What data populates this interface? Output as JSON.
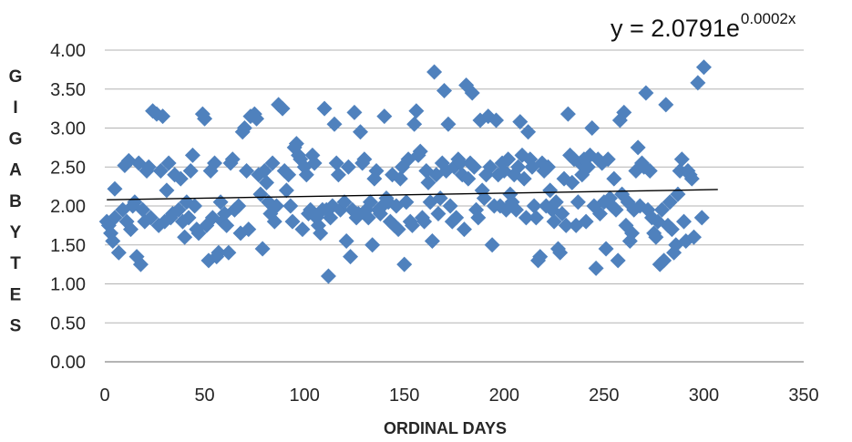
{
  "chart_data": {
    "type": "scatter",
    "xlabel": "ORDINAL DAYS",
    "ylabel": "GIGABYTES",
    "xlim": [
      0,
      350
    ],
    "ylim": [
      0.0,
      4.0
    ],
    "x_ticks": [
      "0",
      "50",
      "100",
      "150",
      "200",
      "250",
      "300",
      "350"
    ],
    "y_ticks": [
      "0.00",
      "0.50",
      "1.00",
      "1.50",
      "2.00",
      "2.50",
      "3.00",
      "3.50",
      "4.00"
    ],
    "grid": "horizontal",
    "legend": "none",
    "marker": "diamond",
    "marker_color": "#4F81BD",
    "trendline": {
      "type": "exponential",
      "a": 2.0791,
      "b": 0.0002,
      "x_range": [
        1,
        307
      ],
      "color": "#000000",
      "label_base": "y = 2.0791e",
      "label_exp": "0.0002x"
    },
    "points": [
      [
        1,
        1.8
      ],
      [
        2,
        1.75
      ],
      [
        3,
        1.65
      ],
      [
        4,
        1.55
      ],
      [
        5,
        1.85
      ],
      [
        5,
        2.22
      ],
      [
        7,
        1.4
      ],
      [
        9,
        1.95
      ],
      [
        10,
        2.52
      ],
      [
        11,
        1.8
      ],
      [
        12,
        2.58
      ],
      [
        13,
        1.7
      ],
      [
        14,
        2.0
      ],
      [
        15,
        2.05
      ],
      [
        16,
        1.35
      ],
      [
        17,
        2.55
      ],
      [
        18,
        1.25
      ],
      [
        19,
        1.95
      ],
      [
        20,
        1.8
      ],
      [
        21,
        2.45
      ],
      [
        22,
        2.5
      ],
      [
        23,
        1.85
      ],
      [
        24,
        3.22
      ],
      [
        26,
        3.18
      ],
      [
        27,
        1.75
      ],
      [
        28,
        2.45
      ],
      [
        29,
        3.15
      ],
      [
        30,
        1.8
      ],
      [
        31,
        2.2
      ],
      [
        32,
        2.55
      ],
      [
        33,
        1.85
      ],
      [
        34,
        1.9
      ],
      [
        35,
        2.4
      ],
      [
        37,
        1.95
      ],
      [
        38,
        2.35
      ],
      [
        39,
        1.8
      ],
      [
        40,
        1.6
      ],
      [
        41,
        2.05
      ],
      [
        42,
        1.85
      ],
      [
        43,
        2.45
      ],
      [
        44,
        2.65
      ],
      [
        45,
        2.0
      ],
      [
        46,
        1.7
      ],
      [
        47,
        1.65
      ],
      [
        49,
        3.18
      ],
      [
        50,
        3.12
      ],
      [
        51,
        1.75
      ],
      [
        52,
        1.3
      ],
      [
        53,
        2.45
      ],
      [
        54,
        1.85
      ],
      [
        55,
        2.55
      ],
      [
        56,
        1.35
      ],
      [
        57,
        1.4
      ],
      [
        58,
        2.05
      ],
      [
        59,
        1.8
      ],
      [
        60,
        1.9
      ],
      [
        61,
        1.75
      ],
      [
        62,
        1.4
      ],
      [
        63,
        2.55
      ],
      [
        64,
        2.6
      ],
      [
        65,
        1.95
      ],
      [
        67,
        2.0
      ],
      [
        68,
        1.65
      ],
      [
        69,
        2.95
      ],
      [
        70,
        3.0
      ],
      [
        71,
        2.45
      ],
      [
        72,
        1.7
      ],
      [
        73,
        3.15
      ],
      [
        75,
        3.18
      ],
      [
        76,
        3.12
      ],
      [
        77,
        2.4
      ],
      [
        78,
        2.15
      ],
      [
        79,
        1.45
      ],
      [
        80,
        2.45
      ],
      [
        81,
        2.3
      ],
      [
        82,
        2.05
      ],
      [
        83,
        1.9
      ],
      [
        84,
        2.55
      ],
      [
        85,
        1.8
      ],
      [
        86,
        2.0
      ],
      [
        87,
        3.3
      ],
      [
        89,
        3.25
      ],
      [
        90,
        2.45
      ],
      [
        91,
        2.2
      ],
      [
        92,
        2.4
      ],
      [
        93,
        2.0
      ],
      [
        94,
        1.8
      ],
      [
        95,
        2.75
      ],
      [
        96,
        2.8
      ],
      [
        97,
        2.65
      ],
      [
        98,
        2.6
      ],
      [
        99,
        1.7
      ],
      [
        100,
        2.5
      ],
      [
        101,
        2.4
      ],
      [
        102,
        1.9
      ],
      [
        103,
        1.95
      ],
      [
        104,
        2.65
      ],
      [
        105,
        2.55
      ],
      [
        106,
        1.85
      ],
      [
        107,
        1.75
      ],
      [
        108,
        1.65
      ],
      [
        109,
        1.95
      ],
      [
        110,
        3.25
      ],
      [
        111,
        1.95
      ],
      [
        112,
        1.1
      ],
      [
        113,
        1.85
      ],
      [
        114,
        2.0
      ],
      [
        115,
        3.05
      ],
      [
        116,
        2.55
      ],
      [
        117,
        2.4
      ],
      [
        118,
        1.95
      ],
      [
        120,
        2.05
      ],
      [
        121,
        1.55
      ],
      [
        122,
        2.5
      ],
      [
        123,
        1.35
      ],
      [
        124,
        1.95
      ],
      [
        125,
        3.2
      ],
      [
        126,
        1.85
      ],
      [
        127,
        1.9
      ],
      [
        128,
        2.95
      ],
      [
        129,
        2.55
      ],
      [
        130,
        2.6
      ],
      [
        131,
        1.95
      ],
      [
        132,
        1.85
      ],
      [
        133,
        2.05
      ],
      [
        134,
        1.5
      ],
      [
        135,
        2.35
      ],
      [
        136,
        2.45
      ],
      [
        137,
        1.95
      ],
      [
        138,
        1.9
      ],
      [
        139,
        2.0
      ],
      [
        140,
        3.15
      ],
      [
        141,
        2.1
      ],
      [
        142,
        2.05
      ],
      [
        143,
        1.8
      ],
      [
        144,
        2.4
      ],
      [
        145,
        1.75
      ],
      [
        146,
        2.0
      ],
      [
        147,
        1.7
      ],
      [
        148,
        2.35
      ],
      [
        149,
        2.5
      ],
      [
        150,
        1.25
      ],
      [
        151,
        2.05
      ],
      [
        152,
        2.6
      ],
      [
        153,
        1.8
      ],
      [
        154,
        1.75
      ],
      [
        155,
        3.05
      ],
      [
        156,
        3.22
      ],
      [
        157,
        2.65
      ],
      [
        158,
        2.7
      ],
      [
        159,
        1.85
      ],
      [
        160,
        1.8
      ],
      [
        161,
        2.45
      ],
      [
        162,
        2.3
      ],
      [
        163,
        2.05
      ],
      [
        164,
        1.55
      ],
      [
        165,
        3.72
      ],
      [
        166,
        2.4
      ],
      [
        167,
        1.9
      ],
      [
        168,
        2.1
      ],
      [
        169,
        2.55
      ],
      [
        170,
        3.48
      ],
      [
        171,
        2.45
      ],
      [
        172,
        3.05
      ],
      [
        173,
        2.0
      ],
      [
        174,
        1.8
      ],
      [
        175,
        2.5
      ],
      [
        176,
        1.85
      ],
      [
        177,
        2.6
      ],
      [
        178,
        2.55
      ],
      [
        179,
        2.4
      ],
      [
        180,
        1.7
      ],
      [
        181,
        3.55
      ],
      [
        182,
        2.35
      ],
      [
        183,
        2.55
      ],
      [
        184,
        3.45
      ],
      [
        185,
        2.5
      ],
      [
        186,
        1.95
      ],
      [
        187,
        1.85
      ],
      [
        188,
        3.1
      ],
      [
        189,
        2.2
      ],
      [
        190,
        2.1
      ],
      [
        191,
        2.4
      ],
      [
        192,
        3.15
      ],
      [
        193,
        2.5
      ],
      [
        194,
        1.5
      ],
      [
        195,
        2.0
      ],
      [
        196,
        3.1
      ],
      [
        197,
        2.4
      ],
      [
        198,
        2.0
      ],
      [
        199,
        2.55
      ],
      [
        200,
        2.45
      ],
      [
        201,
        1.95
      ],
      [
        202,
        2.6
      ],
      [
        203,
        2.15
      ],
      [
        204,
        2.05
      ],
      [
        205,
        2.4
      ],
      [
        206,
        1.95
      ],
      [
        207,
        2.5
      ],
      [
        208,
        3.08
      ],
      [
        209,
        2.65
      ],
      [
        210,
        2.35
      ],
      [
        211,
        1.85
      ],
      [
        212,
        2.95
      ],
      [
        213,
        2.6
      ],
      [
        214,
        2.5
      ],
      [
        215,
        2.0
      ],
      [
        216,
        1.85
      ],
      [
        217,
        1.3
      ],
      [
        218,
        1.35
      ],
      [
        219,
        2.55
      ],
      [
        220,
        2.45
      ],
      [
        221,
        2.0
      ],
      [
        222,
        2.5
      ],
      [
        223,
        2.2
      ],
      [
        224,
        1.95
      ],
      [
        225,
        1.8
      ],
      [
        226,
        2.05
      ],
      [
        227,
        1.45
      ],
      [
        228,
        1.4
      ],
      [
        229,
        1.9
      ],
      [
        230,
        2.35
      ],
      [
        231,
        1.75
      ],
      [
        232,
        3.18
      ],
      [
        233,
        2.65
      ],
      [
        234,
        2.3
      ],
      [
        235,
        2.6
      ],
      [
        236,
        1.75
      ],
      [
        237,
        2.05
      ],
      [
        238,
        2.55
      ],
      [
        239,
        2.4
      ],
      [
        240,
        2.6
      ],
      [
        241,
        1.8
      ],
      [
        242,
        2.5
      ],
      [
        243,
        2.65
      ],
      [
        244,
        3.0
      ],
      [
        245,
        2.0
      ],
      [
        246,
        1.2
      ],
      [
        247,
        2.6
      ],
      [
        248,
        1.9
      ],
      [
        249,
        2.55
      ],
      [
        250,
        2.05
      ],
      [
        251,
        1.45
      ],
      [
        252,
        2.6
      ],
      [
        253,
        2.1
      ],
      [
        254,
        2.0
      ],
      [
        255,
        2.35
      ],
      [
        256,
        1.95
      ],
      [
        257,
        1.3
      ],
      [
        258,
        3.1
      ],
      [
        259,
        2.15
      ],
      [
        260,
        3.2
      ],
      [
        261,
        1.75
      ],
      [
        262,
        2.05
      ],
      [
        263,
        1.55
      ],
      [
        264,
        1.65
      ],
      [
        265,
        1.95
      ],
      [
        266,
        2.45
      ],
      [
        267,
        2.75
      ],
      [
        268,
        2.0
      ],
      [
        269,
        2.55
      ],
      [
        270,
        2.5
      ],
      [
        271,
        3.45
      ],
      [
        272,
        1.95
      ],
      [
        273,
        2.45
      ],
      [
        274,
        1.85
      ],
      [
        275,
        1.65
      ],
      [
        276,
        1.6
      ],
      [
        277,
        1.8
      ],
      [
        278,
        1.25
      ],
      [
        279,
        1.95
      ],
      [
        280,
        1.3
      ],
      [
        281,
        3.3
      ],
      [
        282,
        1.75
      ],
      [
        283,
        2.05
      ],
      [
        284,
        1.7
      ],
      [
        285,
        1.4
      ],
      [
        286,
        1.5
      ],
      [
        287,
        2.15
      ],
      [
        288,
        2.45
      ],
      [
        289,
        2.6
      ],
      [
        290,
        1.8
      ],
      [
        291,
        1.55
      ],
      [
        292,
        2.45
      ],
      [
        293,
        2.4
      ],
      [
        294,
        2.35
      ],
      [
        295,
        1.6
      ],
      [
        297,
        3.58
      ],
      [
        299,
        1.85
      ],
      [
        300,
        3.78
      ]
    ]
  }
}
